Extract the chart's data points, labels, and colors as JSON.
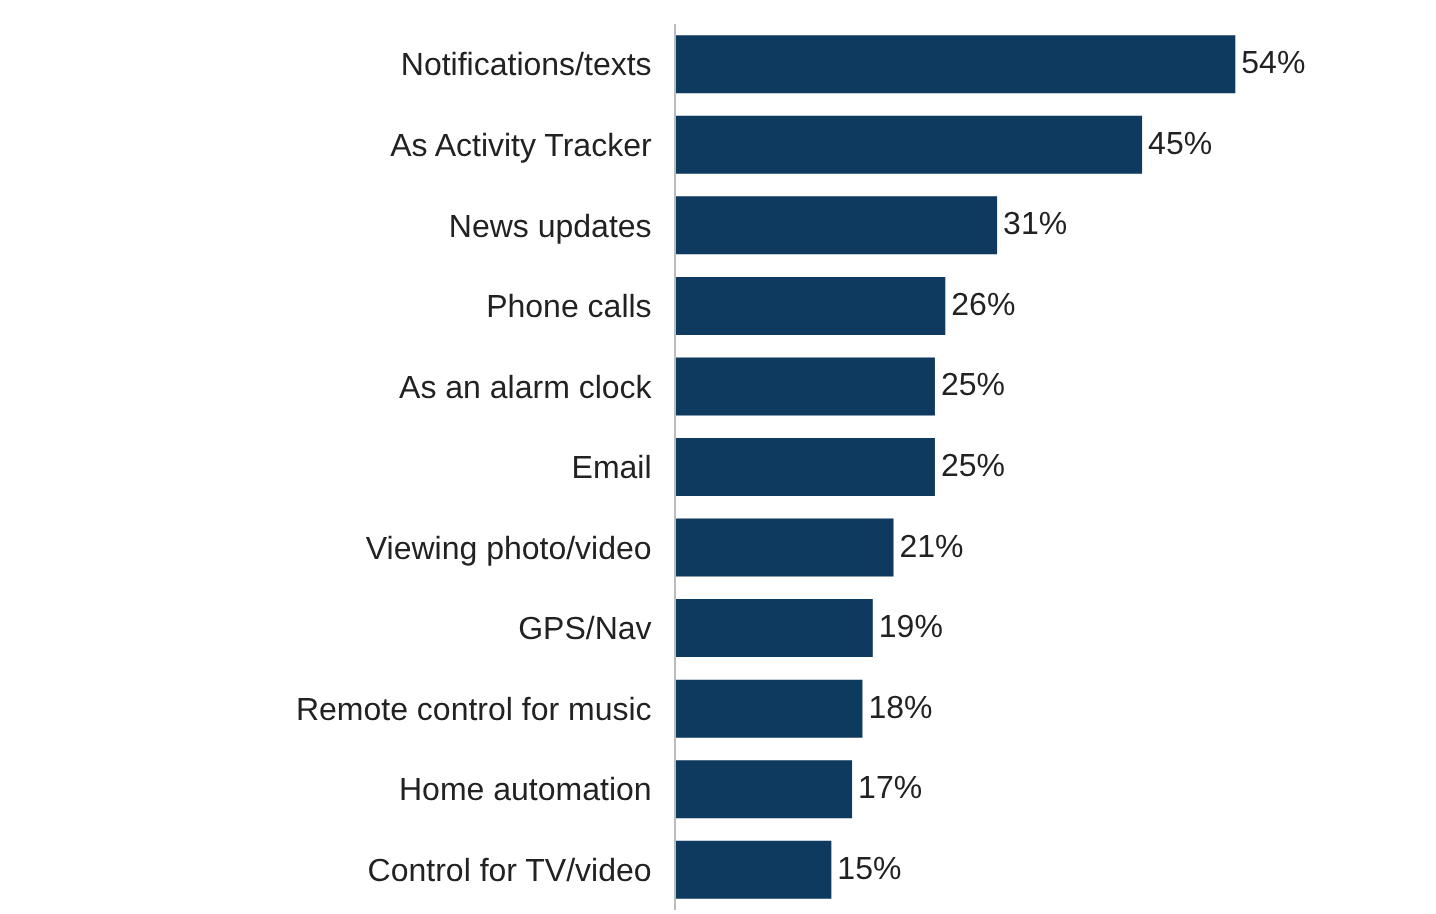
{
  "chart_data": {
    "type": "bar",
    "orientation": "horizontal",
    "categories": [
      "Notifications/texts",
      "As Activity Tracker",
      "News updates",
      "Phone calls",
      "As an alarm clock",
      "Email",
      "Viewing photo/video",
      "GPS/Nav",
      "Remote control for music",
      "Home automation",
      "Control for TV/video"
    ],
    "values": [
      54,
      45,
      31,
      26,
      25,
      25,
      21,
      19,
      18,
      17,
      15
    ],
    "value_labels": [
      "54%",
      "45%",
      "31%",
      "26%",
      "25%",
      "25%",
      "21%",
      "19%",
      "18%",
      "17%",
      "15%"
    ],
    "color": "#0f3a5f"
  }
}
